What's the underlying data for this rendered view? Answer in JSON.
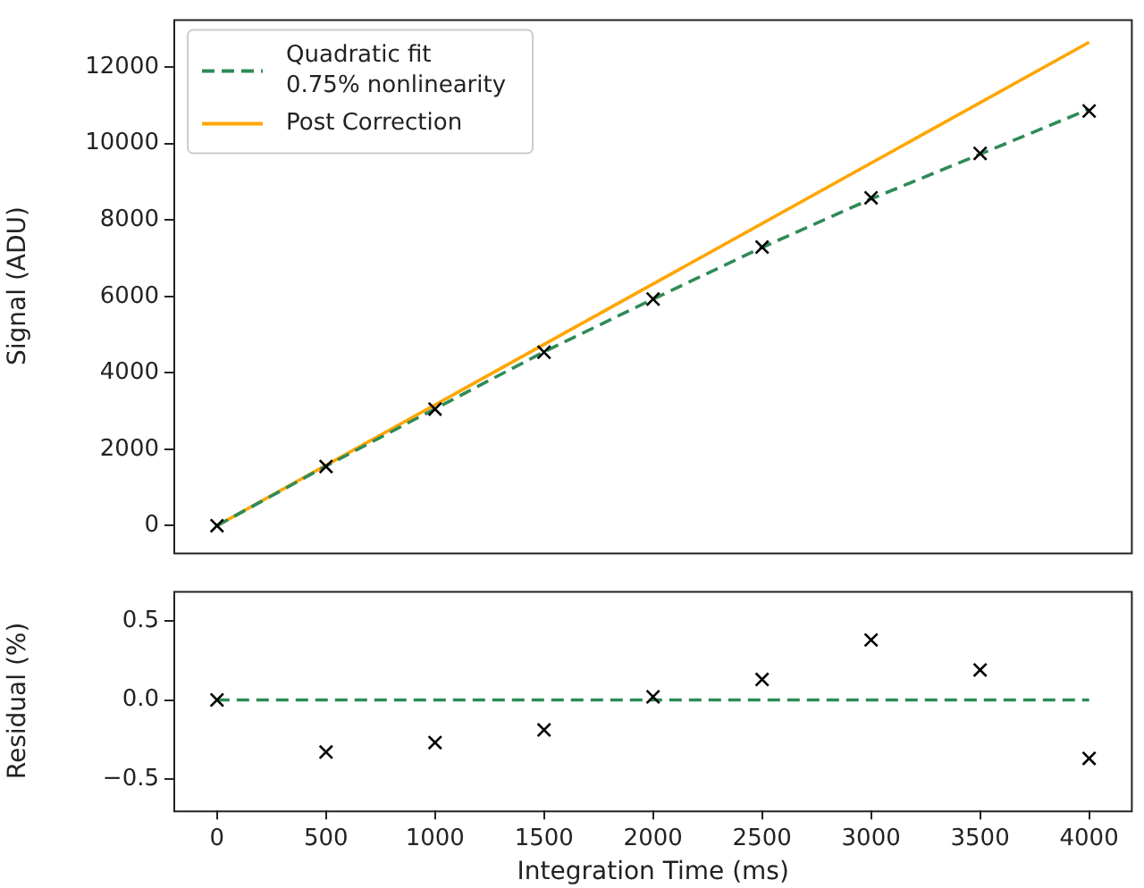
{
  "chart_data": [
    {
      "type": "line",
      "ylabel": "Signal (ADU)",
      "xlim": [
        -200,
        4200
      ],
      "ylim": [
        -700,
        13250
      ],
      "yticks": [
        0,
        2000,
        4000,
        6000,
        8000,
        10000,
        12000
      ],
      "tick_labels": "y",
      "legend": "top left",
      "grid": false,
      "series": [
        {
          "type": "scatter",
          "marker": "cross",
          "color": "#000000",
          "x": [
            0,
            500,
            1000,
            1500,
            2000,
            2500,
            3000,
            3500,
            4000
          ],
          "values": [
            0,
            1550,
            3050,
            4540,
            5930,
            7290,
            8580,
            9740,
            10850
          ]
        },
        {
          "name": "Quadratic fit\n0.75% nonlinearity",
          "line_style": "dashed",
          "color": "#2e8b57",
          "x": [
            0,
            500,
            1000,
            1500,
            2000,
            2500,
            3000,
            3500,
            4000
          ],
          "values": [
            0,
            1560,
            3060,
            4550,
            5930,
            7280,
            8550,
            9720,
            10900
          ]
        },
        {
          "name": "Post Correction",
          "line_style": "solid",
          "color": "#ffa500",
          "x": [
            0,
            4000
          ],
          "values": [
            0,
            12650
          ]
        }
      ]
    },
    {
      "type": "scatter",
      "xlabel": "Integration Time (ms)",
      "ylabel": "Residual (%)",
      "xlim": [
        -200,
        4200
      ],
      "xticks": [
        0,
        500,
        1000,
        1500,
        2000,
        2500,
        3000,
        3500,
        4000
      ],
      "ylim": [
        -0.7,
        0.69
      ],
      "yticks": [
        {
          "value": -0.5,
          "label": "−0.5"
        },
        {
          "value": 0,
          "label": "0.0"
        },
        {
          "value": 0.5,
          "label": "0.5"
        }
      ],
      "grid": false,
      "series": [
        {
          "marker": "cross",
          "color": "#000000",
          "x": [
            0,
            500,
            1000,
            1500,
            2000,
            2500,
            3000,
            3500,
            4000
          ],
          "values": [
            0,
            -0.33,
            -0.27,
            -0.19,
            0.02,
            0.13,
            0.38,
            0.19,
            -0.37
          ]
        },
        {
          "type": "line",
          "line_style": "dashed",
          "color": "#2e8b57",
          "x": [
            0,
            4000
          ],
          "values": [
            0,
            0
          ]
        }
      ]
    }
  ]
}
